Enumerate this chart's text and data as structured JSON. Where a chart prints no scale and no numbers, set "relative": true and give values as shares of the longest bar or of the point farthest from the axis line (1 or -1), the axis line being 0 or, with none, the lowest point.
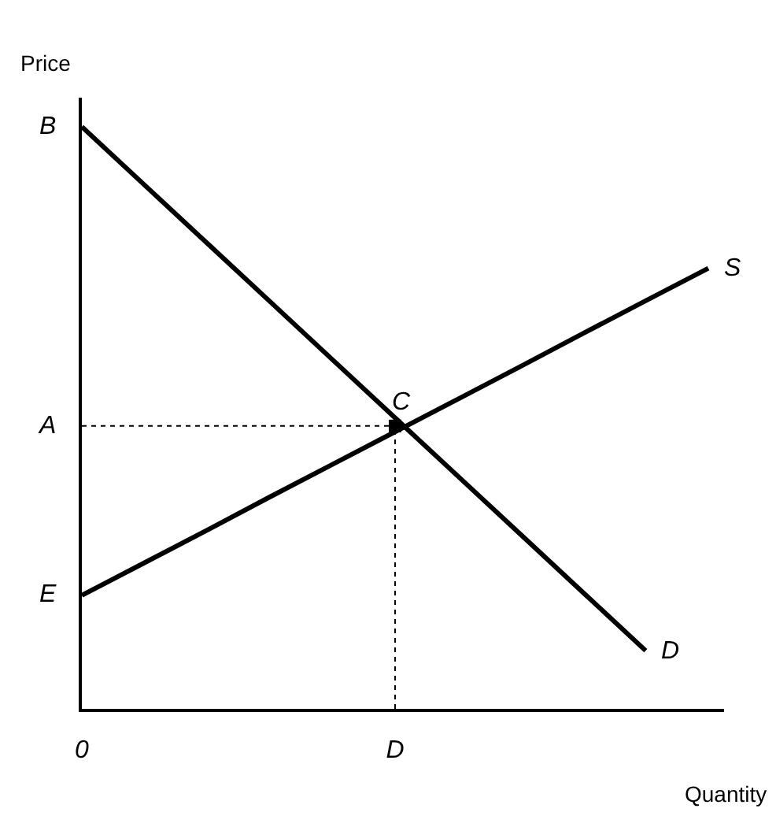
{
  "chart_data": {
    "type": "line",
    "relative": true,
    "xlabel": "Quantity",
    "ylabel": "Price",
    "categories": [
      "0",
      null,
      null,
      null,
      null,
      "D",
      null,
      null,
      null,
      null,
      null
    ],
    "series": [
      {
        "name": "D",
        "color": "#000000",
        "values": [
          1,
          0.9,
          0.8,
          0.7,
          0.6,
          0.5,
          0.4,
          0.3,
          0.2,
          0.1,
          null
        ]
      },
      {
        "name": "S",
        "color": "#000000",
        "values": [
          0.195,
          0.251,
          0.307,
          0.364,
          0.42,
          0.476,
          0.532,
          0.588,
          0.645,
          0.701,
          0.757
        ]
      }
    ],
    "ref_lines": [
      {
        "axis": "y",
        "value": 0.486,
        "label": "A",
        "line_style": "dotted"
      },
      {
        "axis": "x",
        "value": "D",
        "line_style": "dotted"
      }
    ],
    "annotations": [
      {
        "text": "B",
        "x": "0",
        "y": 1
      },
      {
        "text": "E",
        "x": "0",
        "y": 0.195
      },
      {
        "text": "C",
        "x": "D",
        "y": 0.486
      }
    ],
    "line_style": "solid",
    "legend": false
  }
}
